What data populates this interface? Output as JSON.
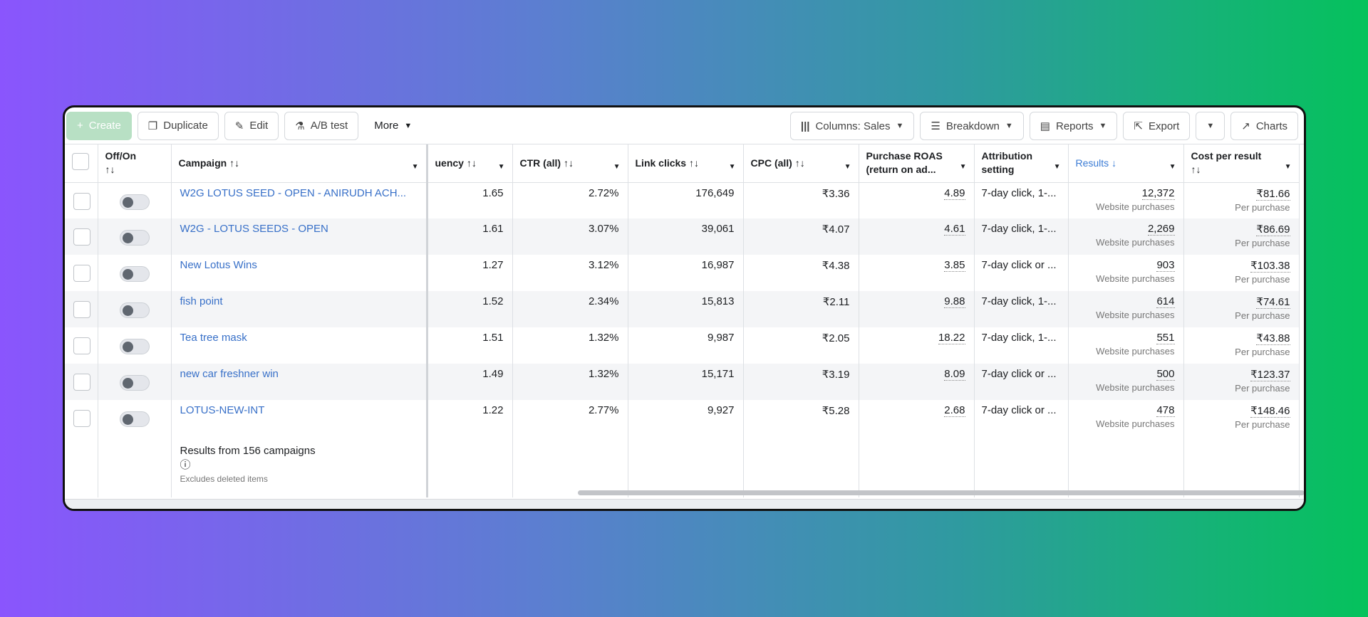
{
  "toolbar": {
    "create": "Create",
    "duplicate": "Duplicate",
    "edit": "Edit",
    "ab_test": "A/B test",
    "more": "More",
    "columns": "Columns: Sales",
    "breakdown": "Breakdown",
    "reports": "Reports",
    "export": "Export",
    "charts": "Charts"
  },
  "columns": {
    "offon": "Off/On",
    "campaign": "Campaign",
    "frequency": "uency",
    "ctr": "CTR (all)",
    "link_clicks": "Link clicks",
    "cpc": "CPC (all)",
    "roas": "Purchase ROAS (return on ad...",
    "attribution": "Attribution setting",
    "results": "Results",
    "cost": "Cost per result",
    "sort": "↑↓",
    "sort_desc": "↓"
  },
  "rows": [
    {
      "campaign": "W2G LOTUS SEED - OPEN - ANIRUDH ACH...",
      "frequency": "1.65",
      "ctr": "2.72%",
      "link_clicks": "176,649",
      "cpc": "₹3.36",
      "roas": "4.89",
      "attribution": "7-day click, 1-...",
      "results": "12,372",
      "results_sub": "Website purchases",
      "cost": "₹81.66",
      "cost_sub": "Per purchase"
    },
    {
      "campaign": "W2G - LOTUS SEEDS - OPEN",
      "frequency": "1.61",
      "ctr": "3.07%",
      "link_clicks": "39,061",
      "cpc": "₹4.07",
      "roas": "4.61",
      "attribution": "7-day click, 1-...",
      "results": "2,269",
      "results_sub": "Website purchases",
      "cost": "₹86.69",
      "cost_sub": "Per purchase"
    },
    {
      "campaign": "New Lotus Wins",
      "frequency": "1.27",
      "ctr": "3.12%",
      "link_clicks": "16,987",
      "cpc": "₹4.38",
      "roas": "3.85",
      "attribution": "7-day click or ...",
      "results": "903",
      "results_sub": "Website purchases",
      "cost": "₹103.38",
      "cost_sub": "Per purchase"
    },
    {
      "campaign": "fish point",
      "frequency": "1.52",
      "ctr": "2.34%",
      "link_clicks": "15,813",
      "cpc": "₹2.11",
      "roas": "9.88",
      "attribution": "7-day click, 1-...",
      "results": "614",
      "results_sub": "Website purchases",
      "cost": "₹74.61",
      "cost_sub": "Per purchase"
    },
    {
      "campaign": "Tea tree mask",
      "frequency": "1.51",
      "ctr": "1.32%",
      "link_clicks": "9,987",
      "cpc": "₹2.05",
      "roas": "18.22",
      "attribution": "7-day click, 1-...",
      "results": "551",
      "results_sub": "Website purchases",
      "cost": "₹43.88",
      "cost_sub": "Per purchase"
    },
    {
      "campaign": "new car freshner win",
      "frequency": "1.49",
      "ctr": "1.32%",
      "link_clicks": "15,171",
      "cpc": "₹3.19",
      "roas": "8.09",
      "attribution": "7-day click or ...",
      "results": "500",
      "results_sub": "Website purchases",
      "cost": "₹123.37",
      "cost_sub": "Per purchase"
    },
    {
      "campaign": "LOTUS-NEW-INT",
      "frequency": "1.22",
      "ctr": "2.77%",
      "link_clicks": "9,927",
      "cpc": "₹5.28",
      "roas": "2.68",
      "attribution": "7-day click or ...",
      "results": "478",
      "results_sub": "Website purchases",
      "cost": "₹148.46",
      "cost_sub": "Per purchase"
    }
  ],
  "footer": {
    "summary": "Results from 156 campaigns",
    "note": "Excludes deleted items"
  }
}
